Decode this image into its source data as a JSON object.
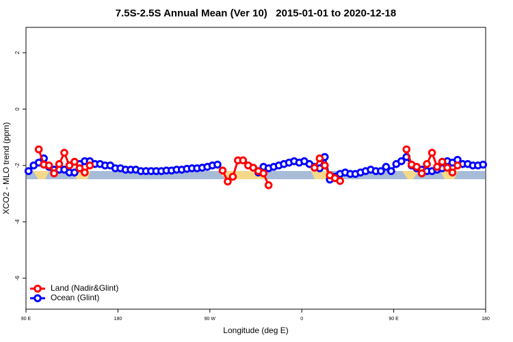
{
  "chart_data": {
    "type": "line",
    "title": "7.5S-2.5S Annual Mean (Ver 10)   2015-01-01 to 2020-12-18",
    "x_label": "Longitude (deg E)",
    "y_label": "XCO2 - MLO trend (ppm)",
    "xlim": [
      90,
      540
    ],
    "ylim": [
      -7.1,
      2.9
    ],
    "xticks": [
      {
        "value": 90,
        "label": "90 E"
      },
      180,
      {
        "value": 270,
        "label": "90 W"
      },
      {
        "value": 360,
        "label": "0"
      },
      {
        "value": 450,
        "label": "90 E"
      },
      {
        "value": 540,
        "label": "180"
      }
    ],
    "yticks": [
      -6,
      -4,
      -2,
      0,
      2
    ],
    "legend": "bottom-left",
    "x": [
      92.5,
      97.5,
      102.5,
      107.5,
      112.5,
      117.5,
      122.5,
      127.5,
      132.5,
      137.5,
      142.5,
      147.5,
      152.5,
      157.5,
      162.5,
      167.5,
      172.5,
      177.5,
      182.5,
      187.5,
      192.5,
      197.5,
      202.5,
      207.5,
      212.5,
      217.5,
      222.5,
      227.5,
      232.5,
      237.5,
      242.5,
      247.5,
      252.5,
      257.5,
      262.5,
      267.5,
      272.5,
      277.5,
      282.5,
      287.5,
      292.5,
      297.5,
      302.5,
      307.5,
      312.5,
      317.5,
      322.5,
      327.5,
      332.5,
      337.5,
      342.5,
      347.5,
      352.5,
      357.5,
      362.5,
      367.5,
      372.5,
      377.5,
      382.5,
      387.5,
      392.5,
      397.5,
      402.5,
      407.5,
      412.5,
      417.5,
      422.5,
      427.5,
      432.5,
      437.5,
      442.5,
      447.5,
      452.5,
      457.5,
      462.5,
      467.5,
      472.5,
      477.5,
      482.5,
      487.5,
      492.5,
      497.5,
      502.5,
      507.5,
      512.5,
      517.5,
      522.5,
      527.5,
      532.5,
      537.5
    ],
    "series": [
      {
        "name": "Land (Nadir&Glint)",
        "color": "#ff0000",
        "values": [
          null,
          null,
          -1.43,
          -1.97,
          -2.0,
          -2.28,
          -1.95,
          -1.55,
          -2.0,
          -1.87,
          -2.1,
          -2.25,
          -2.0,
          null,
          null,
          null,
          null,
          null,
          null,
          null,
          null,
          null,
          null,
          null,
          null,
          null,
          null,
          null,
          null,
          null,
          null,
          null,
          null,
          null,
          null,
          null,
          null,
          null,
          -2.18,
          -2.57,
          -2.4,
          -1.82,
          -1.82,
          -2.0,
          -2.08,
          -2.2,
          -2.28,
          -2.7,
          null,
          null,
          null,
          null,
          null,
          null,
          null,
          null,
          -2.08,
          -1.75,
          -2.0,
          -2.35,
          -2.45,
          -2.55,
          null,
          null,
          null,
          null,
          null,
          null,
          null,
          null,
          null,
          null,
          null,
          null,
          -1.43,
          -1.97,
          -2.05,
          -2.28,
          -1.95,
          -1.55,
          -2.05,
          -1.87,
          -2.08,
          -2.25,
          -2.0,
          null,
          null,
          null,
          null,
          null
        ]
      },
      {
        "name": "Ocean (Glint)",
        "color": "#0000ff",
        "values": [
          -2.2,
          -2.0,
          -1.9,
          -1.75,
          -2.05,
          -2.15,
          -2.15,
          -2.15,
          -2.25,
          -2.25,
          -1.95,
          -1.85,
          -1.85,
          -1.95,
          -1.95,
          -2.0,
          -2.0,
          -2.1,
          -2.1,
          -2.15,
          -2.15,
          -2.15,
          -2.2,
          -2.2,
          -2.2,
          -2.2,
          -2.2,
          -2.18,
          -2.18,
          -2.15,
          -2.15,
          -2.12,
          -2.1,
          -2.1,
          -2.08,
          -2.05,
          -2.0,
          -1.97,
          null,
          null,
          null,
          null,
          null,
          null,
          null,
          -2.25,
          -2.05,
          -2.1,
          -2.05,
          -2.0,
          -1.95,
          -1.9,
          -1.85,
          -1.9,
          -1.85,
          -1.95,
          -2.05,
          -2.1,
          -1.7,
          -2.5,
          -2.4,
          -2.3,
          -2.25,
          -2.3,
          -2.3,
          -2.25,
          -2.2,
          -2.15,
          -2.2,
          -2.2,
          -2.05,
          -2.2,
          -1.95,
          -1.85,
          -1.7,
          -2.0,
          -2.1,
          -2.15,
          -2.2,
          -2.2,
          -2.15,
          -2.1,
          -1.85,
          -1.9,
          -1.8,
          -1.95,
          -1.95,
          -2.0,
          -2.0,
          -1.97
        ]
      }
    ]
  }
}
